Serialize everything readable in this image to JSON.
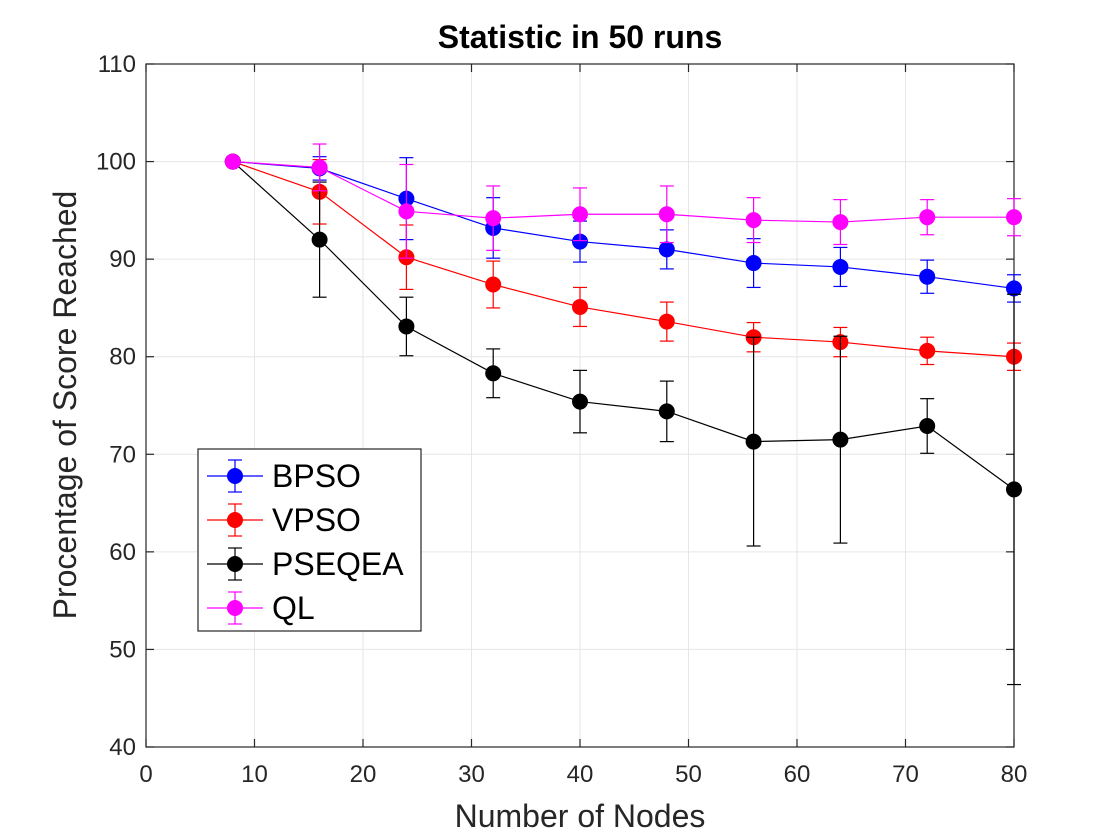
{
  "chart_data": {
    "type": "line",
    "title": "Statistic in 50 runs",
    "xlabel": "Number of Nodes",
    "ylabel": "Procentage of Score Reached",
    "xlim": [
      0,
      80
    ],
    "ylim": [
      40,
      110
    ],
    "xticks": [
      0,
      10,
      20,
      30,
      40,
      50,
      60,
      70,
      80
    ],
    "yticks": [
      40,
      50,
      60,
      70,
      80,
      90,
      100,
      110
    ],
    "grid": true,
    "legend_position": "lower-left",
    "series": [
      {
        "name": "BPSO",
        "color": "#0000ff",
        "x": [
          8,
          16,
          24,
          32,
          40,
          48,
          56,
          64,
          72,
          80
        ],
        "y": [
          100,
          99.3,
          96.2,
          93.2,
          91.8,
          91.0,
          89.6,
          89.2,
          88.2,
          87.0
        ],
        "err": [
          0,
          1.2,
          4.2,
          3.1,
          2.1,
          2.0,
          2.5,
          2.0,
          1.7,
          1.4
        ]
      },
      {
        "name": "VPSO",
        "color": "#ff0000",
        "x": [
          8,
          16,
          24,
          32,
          40,
          48,
          56,
          64,
          72,
          80
        ],
        "y": [
          100,
          96.9,
          90.2,
          87.4,
          85.1,
          83.6,
          82.0,
          81.5,
          80.6,
          80.0
        ],
        "err": [
          0,
          3.3,
          3.3,
          2.4,
          2.0,
          2.0,
          1.5,
          1.5,
          1.4,
          1.4
        ]
      },
      {
        "name": "PSEQEA",
        "color": "#000000",
        "x": [
          8,
          16,
          24,
          32,
          40,
          48,
          56,
          64,
          72,
          80
        ],
        "y": [
          100,
          92.0,
          83.1,
          78.3,
          75.4,
          74.4,
          71.3,
          71.5,
          72.9,
          66.4
        ],
        "err": [
          0,
          5.9,
          3.0,
          2.5,
          3.2,
          3.1,
          10.7,
          10.6,
          2.8,
          20.0
        ]
      },
      {
        "name": "QL",
        "color": "#ff00ff",
        "x": [
          8,
          16,
          24,
          32,
          40,
          48,
          56,
          64,
          72,
          80
        ],
        "y": [
          100,
          99.4,
          94.9,
          94.2,
          94.6,
          94.6,
          94.0,
          93.8,
          94.3,
          94.3
        ],
        "err": [
          0,
          2.4,
          4.8,
          3.3,
          2.7,
          2.9,
          2.3,
          2.3,
          1.8,
          1.9
        ]
      }
    ]
  }
}
